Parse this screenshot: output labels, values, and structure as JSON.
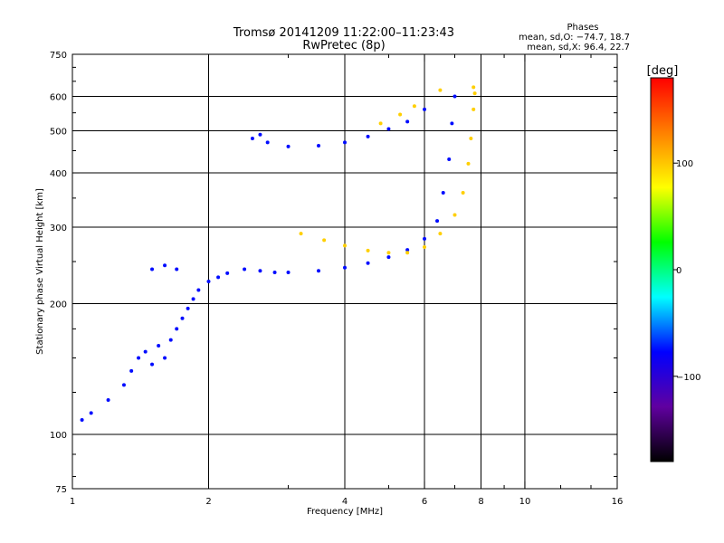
{
  "chart_data": {
    "type": "scatter",
    "title": "Tromsø 20141209 11:22:00–11:23:43",
    "subtitle": "RwPretec (8p)",
    "phase_box": {
      "title": "Phases",
      "line1": "mean, sd,O: −74.7, 18.7",
      "line2": "mean, sd,X:  96.4, 22.7"
    },
    "xlabel": "Frequency [MHz]",
    "ylabel": "Stationary phase Virtual Height [km]",
    "x_scale": "log",
    "y_scale": "log",
    "xlim": [
      1,
      16
    ],
    "ylim": [
      75,
      750
    ],
    "x_ticks": [
      {
        "v": 1,
        "label": "1"
      },
      {
        "v": 2,
        "label": "2"
      },
      {
        "v": 4,
        "label": "4"
      },
      {
        "v": 6,
        "label": "6"
      },
      {
        "v": 8,
        "label": "8"
      },
      {
        "v": 10,
        "label": "10"
      },
      {
        "v": 16,
        "label": "16"
      }
    ],
    "x_gridlines": [
      2,
      4,
      6,
      8,
      10
    ],
    "x_minor_ticks": [
      3,
      5,
      7,
      9,
      12,
      14
    ],
    "y_ticks": [
      {
        "v": 75,
        "label": "75"
      },
      {
        "v": 100,
        "label": "100"
      },
      {
        "v": 200,
        "label": "200"
      },
      {
        "v": 300,
        "label": "300"
      },
      {
        "v": 400,
        "label": "400"
      },
      {
        "v": 500,
        "label": "500"
      },
      {
        "v": 600,
        "label": "600"
      },
      {
        "v": 750,
        "label": "750"
      }
    ],
    "y_gridlines": [
      100,
      200,
      300,
      400,
      500,
      600
    ],
    "y_minor_ticks": [
      80,
      90,
      125,
      150,
      175,
      250,
      350,
      450,
      550,
      650,
      700
    ],
    "grid": true,
    "colorbar": {
      "label": "[deg]",
      "range": [
        -180,
        180
      ],
      "ticks": [
        {
          "v": 100,
          "label": "100"
        },
        {
          "v": 0,
          "label": "0"
        },
        {
          "v": -100,
          "label": "−100"
        }
      ],
      "colors": [
        "#ff0000",
        "#ff8000",
        "#ffff00",
        "#00ff00",
        "#00ffff",
        "#0000ff",
        "#6000a0",
        "#000000"
      ]
    },
    "series": [
      {
        "mode": "O",
        "description_phase": -74.7,
        "points": [
          [
            1.05,
            108
          ],
          [
            1.1,
            112
          ],
          [
            1.2,
            120
          ],
          [
            1.3,
            130
          ],
          [
            1.35,
            140
          ],
          [
            1.4,
            150
          ],
          [
            1.45,
            155
          ],
          [
            1.5,
            145
          ],
          [
            1.55,
            160
          ],
          [
            1.6,
            150
          ],
          [
            1.65,
            165
          ],
          [
            1.7,
            175
          ],
          [
            1.75,
            185
          ],
          [
            1.8,
            195
          ],
          [
            1.85,
            205
          ],
          [
            1.9,
            215
          ],
          [
            2.0,
            225
          ],
          [
            2.1,
            230
          ],
          [
            2.2,
            235
          ],
          [
            2.4,
            240
          ],
          [
            2.6,
            238
          ],
          [
            2.8,
            236
          ],
          [
            3.0,
            236
          ],
          [
            3.5,
            238
          ],
          [
            4.0,
            242
          ],
          [
            4.5,
            248
          ],
          [
            5.0,
            256
          ],
          [
            5.5,
            266
          ],
          [
            6.0,
            282
          ],
          [
            6.4,
            310
          ],
          [
            6.6,
            360
          ],
          [
            6.8,
            430
          ],
          [
            6.9,
            520
          ],
          [
            7.0,
            600
          ],
          [
            3.0,
            460
          ],
          [
            3.5,
            462
          ],
          [
            4.0,
            470
          ],
          [
            4.5,
            485
          ],
          [
            5.0,
            505
          ],
          [
            5.5,
            525
          ],
          [
            6.0,
            560
          ],
          [
            1.5,
            240
          ],
          [
            1.6,
            245
          ],
          [
            1.7,
            240
          ],
          [
            2.5,
            480
          ],
          [
            2.6,
            490
          ],
          [
            2.7,
            470
          ]
        ]
      },
      {
        "mode": "X",
        "description_phase": 96.4,
        "points": [
          [
            3.2,
            290
          ],
          [
            3.6,
            280
          ],
          [
            4.0,
            272
          ],
          [
            4.5,
            265
          ],
          [
            5.0,
            262
          ],
          [
            5.5,
            262
          ],
          [
            6.0,
            270
          ],
          [
            6.5,
            290
          ],
          [
            7.0,
            320
          ],
          [
            7.3,
            360
          ],
          [
            7.5,
            420
          ],
          [
            7.6,
            480
          ],
          [
            7.7,
            560
          ],
          [
            7.75,
            610
          ],
          [
            4.8,
            520
          ],
          [
            5.3,
            545
          ],
          [
            5.7,
            570
          ],
          [
            6.5,
            620
          ],
          [
            7.7,
            630
          ]
        ]
      }
    ]
  }
}
